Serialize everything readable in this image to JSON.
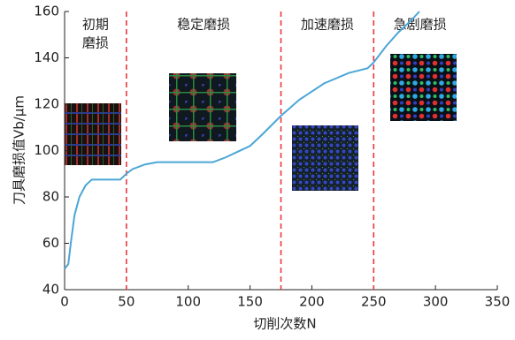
{
  "chart_data": {
    "type": "line",
    "x_label": "切削次数N",
    "y_label": "刀具磨损值Vb/μm",
    "x": [
      0,
      3,
      5,
      8,
      12,
      17,
      22,
      45,
      50,
      55,
      65,
      75,
      120,
      130,
      140,
      150,
      160,
      175,
      190,
      210,
      230,
      245,
      250,
      260,
      270,
      280,
      287
    ],
    "series": [
      {
        "color": "#4ba6d6",
        "values": [
          49,
          51,
          60,
          72,
          80,
          85,
          87.5,
          87.5,
          90,
          92,
          94,
          95,
          95,
          97,
          99.5,
          102,
          107,
          115,
          122,
          129,
          133.5,
          135.5,
          138,
          145,
          151,
          156,
          160
        ]
      }
    ],
    "xlim": [
      0,
      350
    ],
    "xticks": [
      0,
      50,
      100,
      150,
      200,
      250,
      300,
      350
    ],
    "ylim": [
      40,
      160
    ],
    "yticks": [
      40,
      60,
      80,
      100,
      120,
      140,
      160
    ],
    "stage_boundaries": [
      50,
      175,
      250
    ],
    "boundary_color": "#e8383d",
    "stage_labels": [
      [
        "初期",
        "磨损"
      ],
      [
        "稳定磨损"
      ],
      [
        "加速磨损"
      ],
      [
        "急剧磨损"
      ]
    ]
  }
}
